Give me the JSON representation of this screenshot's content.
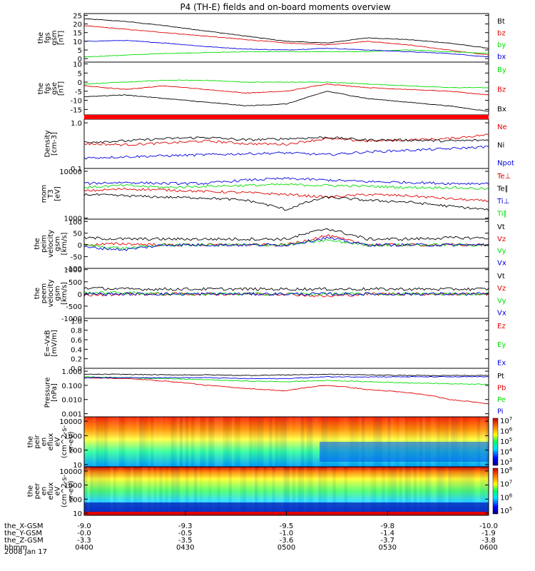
{
  "title": "P4 (TH-E) fields and on-board moments overview",
  "date_label": "2008 Jan 17",
  "colors": {
    "black": "#000000",
    "red": "#e00000",
    "green": "#00dd00",
    "blue": "#0000e0"
  },
  "chart_data": [
    {
      "type": "line",
      "panel": "fgs_gsm",
      "ylabel": [
        "the",
        "fgs",
        "gsm",
        "[nT]"
      ],
      "ylim": [
        -2,
        26
      ],
      "yticks": [
        "0",
        "5",
        "10",
        "15",
        "20",
        "25"
      ],
      "series": [
        {
          "name": "Bt",
          "color": "black",
          "values": [
            23,
            21.5,
            19,
            16,
            13,
            10,
            9,
            12,
            11,
            9,
            6
          ]
        },
        {
          "name": "bz",
          "color": "red",
          "values": [
            19,
            17,
            15,
            13,
            11,
            9,
            8,
            10,
            8,
            5,
            2
          ]
        },
        {
          "name": "by",
          "color": "green",
          "values": [
            1,
            2,
            3,
            3.5,
            4,
            4,
            4,
            4,
            5,
            4,
            3
          ]
        },
        {
          "name": "bx",
          "color": "blue",
          "values": [
            10,
            10.5,
            9,
            7,
            5.5,
            5,
            6,
            5,
            4,
            3,
            1
          ]
        }
      ]
    },
    {
      "type": "line",
      "panel": "fgs_gse",
      "ylabel": [
        "the",
        "fgs",
        "gse",
        "[nT]"
      ],
      "ylim": [
        -18,
        11
      ],
      "yticks": [
        "-15",
        "-10",
        "-5",
        "0",
        "5",
        "10"
      ],
      "series": [
        {
          "name": "By",
          "color": "green",
          "values": [
            -1,
            0,
            1,
            1,
            0,
            0,
            0,
            -1,
            -2,
            -3,
            -3
          ]
        },
        {
          "name": "Bz",
          "color": "red",
          "values": [
            -2,
            -4,
            -2,
            -4,
            -6,
            -5,
            -1,
            -3,
            -4,
            -5,
            -7
          ]
        },
        {
          "name": "Bx",
          "color": "black",
          "values": [
            -8,
            -7,
            -9,
            -11,
            -13,
            -12,
            -5,
            -9,
            -11,
            -13,
            -16
          ]
        }
      ]
    },
    {
      "type": "line",
      "panel": "density",
      "ylabel": [
        "Density",
        "[cm-3]"
      ],
      "scale": "log",
      "ylim": [
        0.1,
        1.2
      ],
      "yticks": [
        "0.1",
        "1.0"
      ],
      "series": [
        {
          "name": "Ne",
          "color": "red",
          "values": [
            0.35,
            0.33,
            0.36,
            0.4,
            0.35,
            0.34,
            0.45,
            0.4,
            0.42,
            0.45,
            0.55
          ]
        },
        {
          "name": "Ni",
          "color": "black",
          "values": [
            0.38,
            0.4,
            0.45,
            0.48,
            0.42,
            0.45,
            0.48,
            0.42,
            0.42,
            0.4,
            0.42
          ]
        },
        {
          "name": "Npot",
          "color": "blue",
          "values": [
            0.17,
            0.18,
            0.19,
            0.2,
            0.21,
            0.22,
            0.2,
            0.23,
            0.25,
            0.27,
            0.3
          ]
        }
      ]
    },
    {
      "type": "line",
      "panel": "temperature",
      "ylabel": [
        "mom",
        "T3",
        "[eV]"
      ],
      "scale": "log",
      "ylim": [
        950,
        11500
      ],
      "yticks": [
        "1000",
        "10000"
      ],
      "series": [
        {
          "name": "Te⊥",
          "color": "red",
          "values": [
            3800,
            4200,
            4000,
            3700,
            3500,
            3200,
            2800,
            3200,
            3000,
            2600,
            2300
          ]
        },
        {
          "name": "Te∥",
          "color": "black",
          "values": [
            3200,
            3000,
            2800,
            2700,
            2400,
            1500,
            2800,
            2400,
            2200,
            1800,
            1500
          ]
        },
        {
          "name": "Ti⊥",
          "color": "blue",
          "values": [
            5500,
            5800,
            5500,
            5500,
            6500,
            7000,
            6500,
            6000,
            5800,
            5500,
            5500
          ]
        },
        {
          "name": "Ti∥",
          "color": "green",
          "values": [
            4500,
            5000,
            4500,
            4800,
            5000,
            5200,
            5000,
            4800,
            4500,
            4500,
            4200
          ]
        }
      ]
    },
    {
      "type": "line",
      "panel": "ion_velocity",
      "ylabel": [
        "the",
        "peim",
        "velocity",
        "gsm",
        "[km/s]"
      ],
      "ylim": [
        -100,
        110
      ],
      "yticks": [
        "-100",
        "-50",
        "0",
        "50",
        "100"
      ],
      "series": [
        {
          "name": "Vt",
          "color": "black",
          "values": [
            30,
            25,
            25,
            25,
            25,
            25,
            70,
            25,
            25,
            30,
            30
          ]
        },
        {
          "name": "Vz",
          "color": "red",
          "values": [
            0,
            5,
            0,
            0,
            0,
            0,
            40,
            0,
            0,
            0,
            0
          ]
        },
        {
          "name": "Vy",
          "color": "green",
          "values": [
            0,
            -15,
            0,
            0,
            0,
            0,
            20,
            0,
            0,
            0,
            0
          ]
        },
        {
          "name": "Vx",
          "color": "blue",
          "values": [
            -10,
            -20,
            0,
            0,
            0,
            0,
            30,
            0,
            0,
            0,
            0
          ]
        }
      ]
    },
    {
      "type": "line",
      "panel": "electron_velocity",
      "ylabel": [
        "the",
        "peem",
        "velocity",
        "gsm",
        "[km/s]"
      ],
      "ylim": [
        -1000,
        1050
      ],
      "yticks": [
        "-1000",
        "-500",
        "0",
        "500",
        "1000"
      ],
      "series": [
        {
          "name": "Vt",
          "color": "black",
          "values": [
            250,
            200,
            200,
            200,
            200,
            200,
            200,
            200,
            200,
            200,
            200
          ]
        },
        {
          "name": "Vz",
          "color": "red",
          "values": [
            -50,
            0,
            0,
            0,
            0,
            0,
            -100,
            0,
            0,
            0,
            0
          ]
        },
        {
          "name": "Vy",
          "color": "green",
          "values": [
            50,
            50,
            0,
            0,
            0,
            0,
            0,
            0,
            0,
            0,
            0
          ]
        },
        {
          "name": "Vx",
          "color": "blue",
          "values": [
            0,
            0,
            0,
            0,
            0,
            0,
            0,
            0,
            0,
            0,
            0
          ]
        }
      ]
    },
    {
      "type": "line",
      "panel": "electric_field",
      "ylabel": [
        "E=-VxB",
        "[mV/m]"
      ],
      "ylim": [
        0,
        1.05
      ],
      "yticks": [
        "0.0",
        "0.2",
        "0.4",
        "0.6",
        "0.8",
        "1.0"
      ],
      "series": [
        {
          "name": "Ez",
          "color": "red",
          "values": []
        },
        {
          "name": "Ey",
          "color": "green",
          "values": []
        },
        {
          "name": "Ex",
          "color": "blue",
          "values": []
        }
      ]
    },
    {
      "type": "line",
      "panel": "pressure",
      "ylabel": [
        "Pressure",
        "[nPa]"
      ],
      "scale": "log",
      "ylim": [
        0.0006,
        1.6
      ],
      "yticks": [
        "0.001",
        "0.010",
        "0.100",
        "1.000"
      ],
      "series": [
        {
          "name": "Pt",
          "color": "black",
          "values": [
            0.6,
            0.6,
            0.55,
            0.55,
            0.5,
            0.55,
            0.6,
            0.55,
            0.5,
            0.5,
            0.5
          ]
        },
        {
          "name": "Pb",
          "color": "red",
          "values": [
            0.35,
            0.3,
            0.2,
            0.1,
            0.06,
            0.04,
            0.1,
            0.05,
            0.03,
            0.01,
            0.005
          ]
        },
        {
          "name": "Pe",
          "color": "green",
          "values": [
            0.4,
            0.35,
            0.3,
            0.25,
            0.2,
            0.18,
            0.22,
            0.18,
            0.15,
            0.13,
            0.12
          ]
        },
        {
          "name": "Pi",
          "color": "blue",
          "values": [
            0.35,
            0.35,
            0.35,
            0.35,
            0.3,
            0.3,
            0.4,
            0.4,
            0.4,
            0.4,
            0.4
          ]
        }
      ]
    },
    {
      "type": "heatmap",
      "panel": "ion_energy_flux",
      "ylabel": [
        "the",
        "peir",
        "en",
        "eflux",
        "eV",
        "(cm^2-s-",
        "sr-eV)"
      ],
      "scale": "log",
      "ylim": [
        7,
        20000
      ],
      "yticks": [
        "10",
        "100",
        "1000",
        "10000"
      ],
      "colorbar_ticks": [
        "10^3",
        "10^4",
        "10^5",
        "10^6",
        "10^7"
      ],
      "colorbar_exponents": [
        "3",
        "4",
        "5",
        "6",
        "7"
      ]
    },
    {
      "type": "heatmap",
      "panel": "electron_energy_flux",
      "ylabel": [
        "the",
        "peer",
        "en",
        "eflux",
        "eV",
        "(cm^2-s-",
        "sr-eV)"
      ],
      "scale": "log",
      "ylim": [
        7,
        20000
      ],
      "yticks": [
        "10",
        "100",
        "1000",
        "10000"
      ],
      "colorbar_ticks": [
        "10^5",
        "10^6",
        "10^7",
        "10^8"
      ],
      "colorbar_exponents": [
        "5",
        "6",
        "7",
        "8"
      ]
    }
  ],
  "x_axis": {
    "ticks": [
      "0400",
      "0430",
      "0500",
      "0530",
      "0600"
    ],
    "rows": [
      {
        "label": "the_X-GSM",
        "values": [
          "-9.0",
          "-9.3",
          "-9.5",
          "-9.8",
          "-10.0"
        ]
      },
      {
        "label": "the_Y-GSM",
        "values": [
          "-0.0",
          "-0.5",
          "-1.0",
          "-1.4",
          "-1.9"
        ]
      },
      {
        "label": "the_Z-GSM",
        "values": [
          "-3.3",
          "-3.5",
          "-3.6",
          "-3.7",
          "-3.8"
        ]
      },
      {
        "label": "hhmm",
        "values": [
          "0400",
          "0430",
          "0500",
          "0530",
          "0600"
        ]
      }
    ]
  }
}
